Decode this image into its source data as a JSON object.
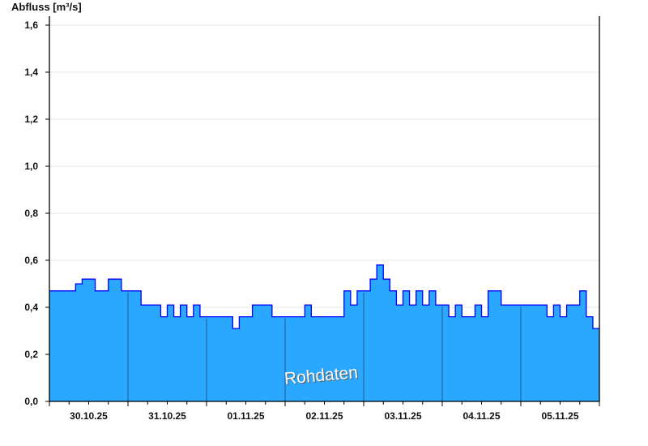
{
  "chart_data": {
    "type": "area",
    "ylabel": "Abfluss [m³/s]",
    "ylim": [
      0,
      1.6
    ],
    "yticks": [
      "0,0",
      "0,2",
      "0,4",
      "0,6",
      "0,8",
      "1,0",
      "1,2",
      "1,4",
      "1,6"
    ],
    "ytick_values": [
      0,
      0.2,
      0.4,
      0.6,
      0.8,
      1.0,
      1.2,
      1.4,
      1.6
    ],
    "xticks": [
      "30.10.25",
      "31.10.25",
      "01.11.25",
      "02.11.25",
      "03.11.25",
      "04.11.25",
      "05.11.25"
    ],
    "x_step": "2 hours",
    "grid": true,
    "annotation": "Rohdaten",
    "colors": {
      "fill": "#2aa7ff",
      "line": "#0000ff",
      "day_divider": "#1f5f8f",
      "grid": "#e6e6e6"
    },
    "series": [
      {
        "values": [
          0.47,
          0.47,
          0.47,
          0.47,
          0.5,
          0.52,
          0.52,
          0.47,
          0.47,
          0.52,
          0.52,
          0.47,
          0.47,
          0.47,
          0.41,
          0.41,
          0.41,
          0.36,
          0.41,
          0.36,
          0.41,
          0.36,
          0.41,
          0.36,
          0.36,
          0.36,
          0.36,
          0.36,
          0.31,
          0.36,
          0.36,
          0.41,
          0.41,
          0.41,
          0.36,
          0.36,
          0.36,
          0.36,
          0.36,
          0.41,
          0.36,
          0.36,
          0.36,
          0.36,
          0.36,
          0.47,
          0.41,
          0.47,
          0.47,
          0.52,
          0.58,
          0.52,
          0.47,
          0.41,
          0.47,
          0.41,
          0.47,
          0.41,
          0.47,
          0.41,
          0.41,
          0.36,
          0.41,
          0.36,
          0.36,
          0.41,
          0.36,
          0.47,
          0.47,
          0.41,
          0.41,
          0.41,
          0.41,
          0.41,
          0.41,
          0.41,
          0.36,
          0.41,
          0.36,
          0.41,
          0.41,
          0.47,
          0.36,
          0.31
        ]
      }
    ]
  }
}
